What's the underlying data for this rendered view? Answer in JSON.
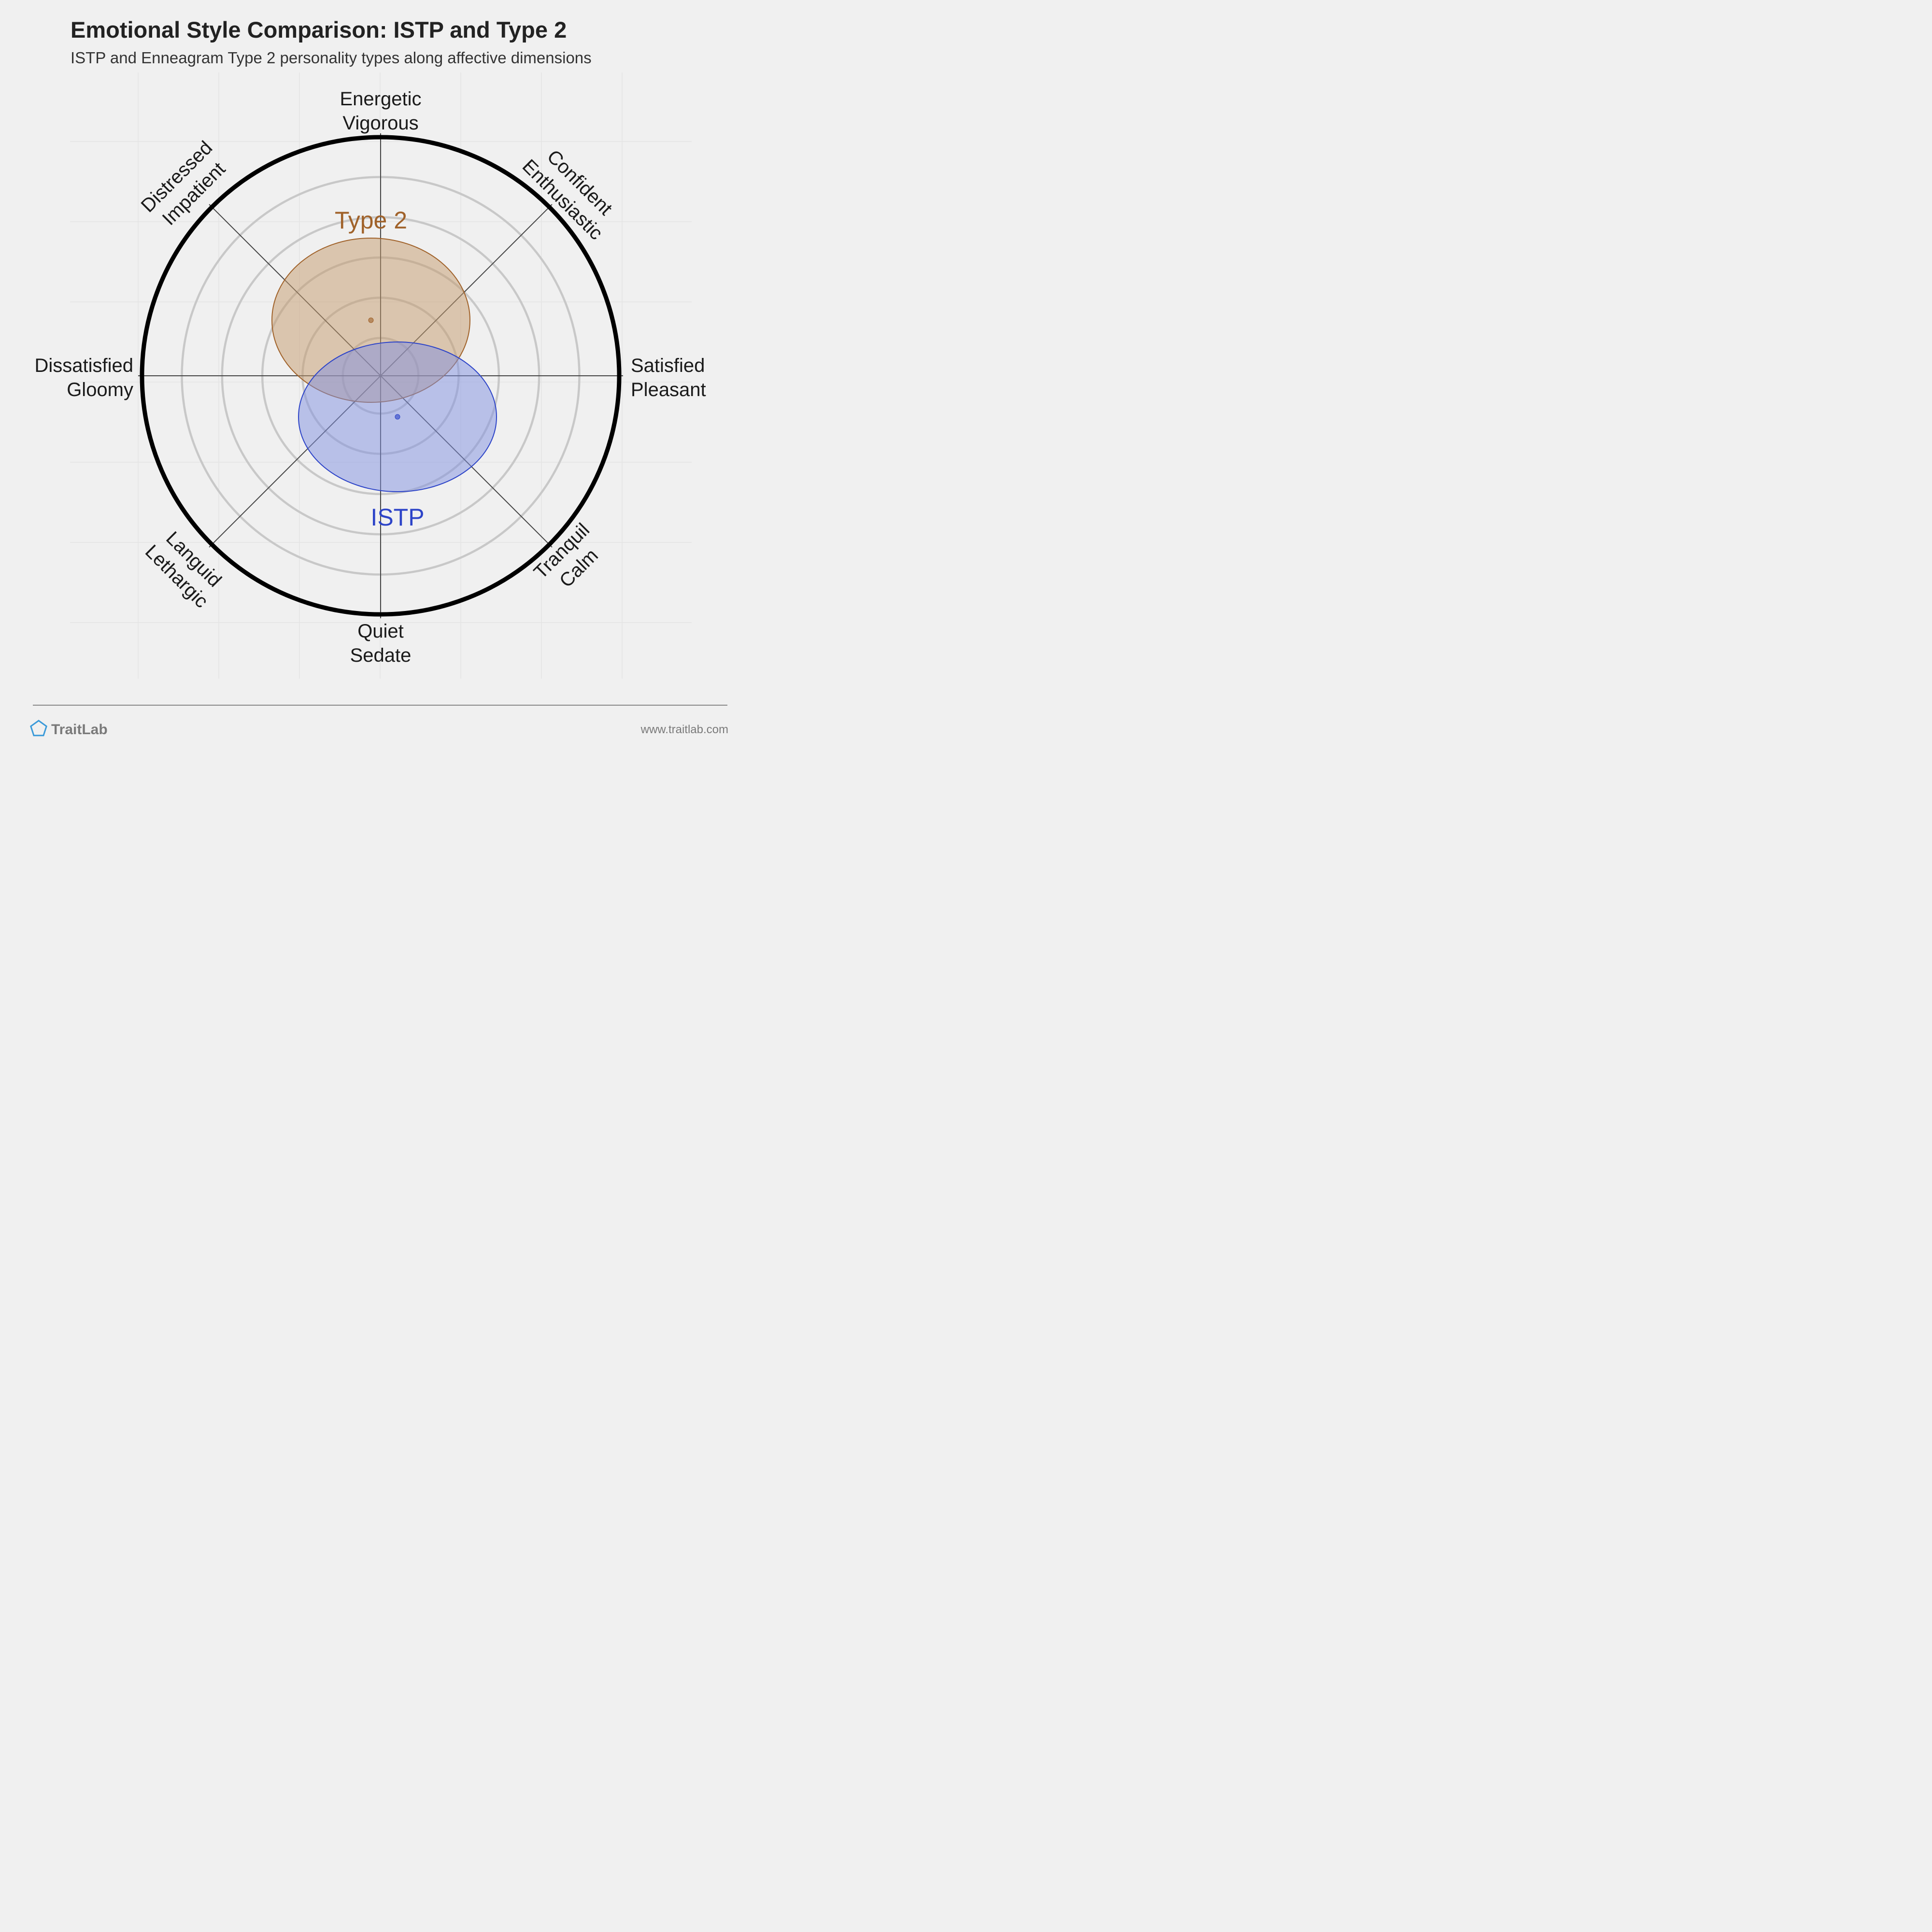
{
  "chart_data": {
    "type": "scatter",
    "title": "Emotional Style Comparison: ISTP and Type 2",
    "subtitle": "ISTP and Enneagram Type 2 personality types along affective dimensions",
    "axes": {
      "right": [
        "Satisfied",
        "Pleasant"
      ],
      "top_right": [
        "Confident",
        "Enthusiastic"
      ],
      "top": [
        "Energetic",
        "Vigorous"
      ],
      "top_left": [
        "Distressed",
        "Impatient"
      ],
      "left": [
        "Dissatisfied",
        "Gloomy"
      ],
      "bottom_left": [
        "Languid",
        "Lethargic"
      ],
      "bottom": [
        "Quiet",
        "Sedate"
      ],
      "bottom_right": [
        "Tranquil",
        "Calm"
      ]
    },
    "xlim": [
      -1,
      1
    ],
    "ylim": [
      -1,
      1
    ],
    "grid": true,
    "series": [
      {
        "name": "Type 2",
        "center": [
          -0.04,
          0.23
        ],
        "spread": [
          0.41,
          0.34
        ],
        "color": "#a0622a",
        "fill": "#c49a6c"
      },
      {
        "name": "ISTP",
        "center": [
          0.07,
          -0.17
        ],
        "spread": [
          0.41,
          0.31
        ],
        "color": "#2d44c8",
        "fill": "#7f8fe0"
      }
    ]
  },
  "footer": {
    "brand": "TraitLab",
    "url": "www.traitlab.com",
    "logo_icon": "pentagon-icon",
    "logo_color": "#3a9ad9"
  }
}
